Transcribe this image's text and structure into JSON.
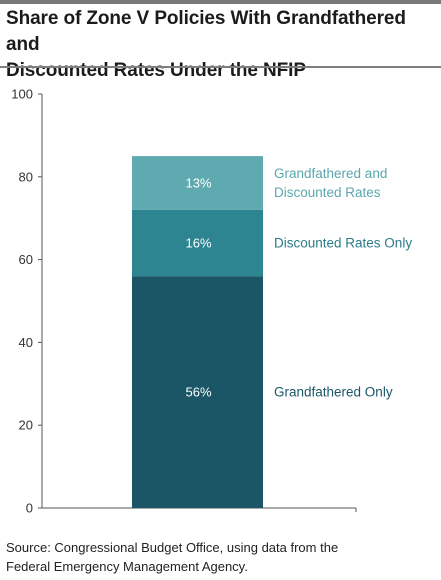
{
  "title_line1": "Share of Zone V Policies With Grandfathered and",
  "title_line2": "Discounted Rates Under the NFIP",
  "source_line1": "Source: Congressional Budget Office, using data from the",
  "source_line2": "Federal Emergency Management Agency.",
  "chart_data": {
    "type": "bar",
    "stacked": true,
    "categories": [
      ""
    ],
    "series": [
      {
        "name": "Grandfathered Only",
        "values": [
          56
        ],
        "label": "56%",
        "color": "#1b5667",
        "annotation": [
          "Grandfathered Only"
        ],
        "annotation_color": "#1b5667"
      },
      {
        "name": "Discounted Rates Only",
        "values": [
          16
        ],
        "label": "16%",
        "color": "#2c8591",
        "annotation": [
          "Discounted Rates Only"
        ],
        "annotation_color": "#2a7c88"
      },
      {
        "name": "Grandfathered and Discounted Rates",
        "values": [
          13
        ],
        "label": "13%",
        "color": "#5eaab0",
        "annotation": [
          "Grandfathered and",
          "Discounted Rates"
        ],
        "annotation_color": "#5aa7ad"
      }
    ],
    "yticks": [
      0,
      20,
      40,
      60,
      80,
      100
    ],
    "ylim": [
      0,
      100
    ],
    "xlabel": "",
    "ylabel": "",
    "grid": false
  }
}
